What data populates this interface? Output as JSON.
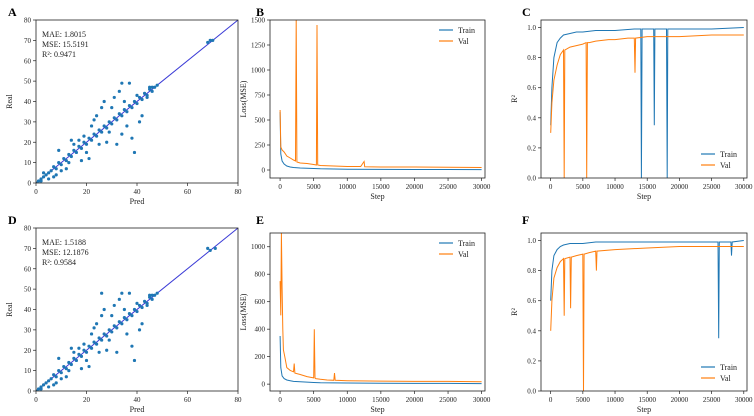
{
  "chart_data": [
    {
      "panel": "A",
      "type": "scatter",
      "xlabel": "Pred",
      "ylabel": "Real",
      "xlim": [
        0,
        80
      ],
      "ylim": [
        0,
        80
      ],
      "xticks": [
        0,
        20,
        40,
        60,
        80
      ],
      "yticks": [
        0,
        10,
        20,
        30,
        40,
        50,
        60,
        70,
        80
      ],
      "metrics": [
        "MAE: 1.8015",
        "MSE: 15.5191",
        "R²: 0.9471"
      ],
      "identity_line": true,
      "grid": false,
      "points": [
        [
          0,
          0
        ],
        [
          1,
          1
        ],
        [
          2,
          2
        ],
        [
          3,
          3
        ],
        [
          4,
          4
        ],
        [
          5,
          5
        ],
        [
          2,
          1
        ],
        [
          3,
          5
        ],
        [
          6,
          6
        ],
        [
          7,
          8
        ],
        [
          8,
          7
        ],
        [
          9,
          10
        ],
        [
          10,
          9
        ],
        [
          11,
          12
        ],
        [
          12,
          11
        ],
        [
          13,
          14
        ],
        [
          14,
          13
        ],
        [
          15,
          16
        ],
        [
          16,
          15
        ],
        [
          17,
          18
        ],
        [
          18,
          17
        ],
        [
          19,
          20
        ],
        [
          20,
          19
        ],
        [
          21,
          22
        ],
        [
          22,
          21
        ],
        [
          23,
          24
        ],
        [
          24,
          23
        ],
        [
          25,
          26
        ],
        [
          26,
          25
        ],
        [
          27,
          28
        ],
        [
          28,
          27
        ],
        [
          29,
          30
        ],
        [
          30,
          29
        ],
        [
          31,
          32
        ],
        [
          32,
          31
        ],
        [
          33,
          34
        ],
        [
          34,
          33
        ],
        [
          35,
          36
        ],
        [
          36,
          35
        ],
        [
          37,
          38
        ],
        [
          38,
          37
        ],
        [
          39,
          40
        ],
        [
          40,
          39
        ],
        [
          41,
          42
        ],
        [
          42,
          41
        ],
        [
          43,
          44
        ],
        [
          44,
          43
        ],
        [
          45,
          46
        ],
        [
          46,
          45
        ],
        [
          47,
          47
        ],
        [
          48,
          48
        ],
        [
          5,
          2
        ],
        [
          8,
          4
        ],
        [
          10,
          6
        ],
        [
          13,
          10
        ],
        [
          15,
          19
        ],
        [
          18,
          11
        ],
        [
          20,
          15
        ],
        [
          22,
          28
        ],
        [
          25,
          19
        ],
        [
          28,
          20
        ],
        [
          30,
          37
        ],
        [
          31,
          42
        ],
        [
          33,
          45
        ],
        [
          35,
          40
        ],
        [
          36,
          28
        ],
        [
          38,
          22
        ],
        [
          40,
          43
        ],
        [
          42,
          33
        ],
        [
          44,
          42
        ],
        [
          26,
          37
        ],
        [
          24,
          33
        ],
        [
          29,
          25
        ],
        [
          32,
          19
        ],
        [
          34,
          49
        ],
        [
          37,
          49
        ],
        [
          39,
          15
        ],
        [
          41,
          30
        ],
        [
          27,
          40
        ],
        [
          23,
          31
        ],
        [
          19,
          23
        ],
        [
          17,
          21
        ],
        [
          14,
          21
        ],
        [
          12,
          7
        ],
        [
          9,
          16
        ],
        [
          7,
          3
        ],
        [
          21,
          12
        ],
        [
          34,
          24
        ],
        [
          45,
          47
        ],
        [
          46,
          47
        ],
        [
          68,
          69
        ],
        [
          69,
          70
        ],
        [
          70,
          70
        ]
      ]
    },
    {
      "panel": "B",
      "type": "line",
      "xlabel": "Step",
      "ylabel": "Loss(MSE)",
      "xlim": [
        -1500,
        30500
      ],
      "ylim": [
        -80,
        1500
      ],
      "xticks": [
        0,
        5000,
        10000,
        15000,
        20000,
        25000,
        30000
      ],
      "yticks": [
        0,
        250,
        500,
        750,
        1000,
        1250,
        1500
      ],
      "legend": "top-right",
      "grid": false,
      "series": [
        {
          "name": "Train",
          "color": "#1f77b4",
          "x": [
            0,
            100,
            300,
            600,
            1000,
            1500,
            2000,
            3000,
            4000,
            5000,
            6000,
            8000,
            10000,
            15000,
            20000,
            25000,
            30000
          ],
          "y": [
            580,
            160,
            90,
            60,
            40,
            30,
            25,
            20,
            18,
            15,
            12,
            10,
            8,
            6,
            5,
            5,
            4
          ]
        },
        {
          "name": "Val",
          "color": "#ff7f0e",
          "x": [
            0,
            100,
            300,
            600,
            1000,
            1500,
            2000,
            2300,
            2400,
            2500,
            3000,
            4000,
            5000,
            5400,
            5500,
            5600,
            6000,
            8000,
            10000,
            12000,
            12500,
            12600,
            15000,
            20000,
            25000,
            30000
          ],
          "y": [
            600,
            230,
            200,
            180,
            140,
            120,
            100,
            90,
            1520,
            80,
            70,
            65,
            55,
            50,
            1450,
            50,
            45,
            40,
            35,
            35,
            85,
            32,
            30,
            30,
            28,
            25
          ]
        }
      ]
    },
    {
      "panel": "C",
      "type": "line",
      "xlabel": "Step",
      "ylabel": "R²",
      "xlim": [
        -1500,
        30500
      ],
      "ylim": [
        0,
        1.05
      ],
      "xticks": [
        0,
        5000,
        10000,
        15000,
        20000,
        25000,
        30000
      ],
      "yticks": [
        0.0,
        0.2,
        0.4,
        0.6,
        0.8,
        1.0
      ],
      "legend": "bottom-right",
      "grid": false,
      "series": [
        {
          "name": "Train",
          "color": "#1f77b4",
          "x": [
            0,
            200,
            500,
            1000,
            1500,
            2000,
            3000,
            4000,
            5000,
            7000,
            10000,
            13000,
            14000,
            14100,
            14200,
            15000,
            16000,
            16100,
            16200,
            17000,
            18000,
            18100,
            18200,
            20000,
            25000,
            30000
          ],
          "y": [
            0.35,
            0.6,
            0.8,
            0.9,
            0.93,
            0.95,
            0.96,
            0.97,
            0.97,
            0.98,
            0.98,
            0.99,
            0.99,
            0.0,
            0.99,
            0.99,
            0.99,
            0.35,
            0.99,
            0.99,
            0.99,
            0.0,
            0.99,
            0.99,
            0.99,
            1.0
          ]
        },
        {
          "name": "Val",
          "color": "#ff7f0e",
          "x": [
            0,
            200,
            500,
            1000,
            1500,
            2000,
            2100,
            2200,
            3000,
            4000,
            5000,
            5500,
            5600,
            5700,
            6000,
            7000,
            9000,
            10000,
            12000,
            13000,
            13100,
            13200,
            15000,
            20000,
            25000,
            30000
          ],
          "y": [
            0.3,
            0.5,
            0.65,
            0.75,
            0.82,
            0.85,
            0.0,
            0.85,
            0.87,
            0.88,
            0.89,
            0.9,
            0.0,
            0.9,
            0.9,
            0.91,
            0.92,
            0.92,
            0.93,
            0.93,
            0.7,
            0.93,
            0.94,
            0.94,
            0.95,
            0.95
          ]
        }
      ]
    },
    {
      "panel": "D",
      "type": "scatter",
      "xlabel": "Pred",
      "ylabel": "Real",
      "xlim": [
        0,
        80
      ],
      "ylim": [
        0,
        80
      ],
      "xticks": [
        0,
        20,
        40,
        60,
        80
      ],
      "yticks": [
        0,
        10,
        20,
        30,
        40,
        50,
        60,
        70,
        80
      ],
      "metrics": [
        "MAE: 1.5188",
        "MSE: 12.1876",
        "R²: 0.9584"
      ],
      "identity_line": true,
      "grid": false,
      "points": [
        [
          0,
          0
        ],
        [
          1,
          1
        ],
        [
          2,
          2
        ],
        [
          3,
          3
        ],
        [
          4,
          4
        ],
        [
          5,
          5
        ],
        [
          2,
          1
        ],
        [
          6,
          6
        ],
        [
          7,
          8
        ],
        [
          8,
          7
        ],
        [
          9,
          10
        ],
        [
          10,
          9
        ],
        [
          11,
          12
        ],
        [
          12,
          11
        ],
        [
          13,
          14
        ],
        [
          14,
          13
        ],
        [
          15,
          16
        ],
        [
          16,
          15
        ],
        [
          17,
          18
        ],
        [
          18,
          17
        ],
        [
          19,
          20
        ],
        [
          20,
          19
        ],
        [
          21,
          22
        ],
        [
          22,
          21
        ],
        [
          23,
          24
        ],
        [
          24,
          23
        ],
        [
          25,
          26
        ],
        [
          26,
          25
        ],
        [
          27,
          28
        ],
        [
          28,
          27
        ],
        [
          29,
          30
        ],
        [
          30,
          29
        ],
        [
          31,
          32
        ],
        [
          32,
          31
        ],
        [
          33,
          34
        ],
        [
          34,
          33
        ],
        [
          35,
          36
        ],
        [
          36,
          35
        ],
        [
          37,
          38
        ],
        [
          38,
          37
        ],
        [
          39,
          40
        ],
        [
          40,
          39
        ],
        [
          41,
          42
        ],
        [
          42,
          41
        ],
        [
          43,
          44
        ],
        [
          44,
          43
        ],
        [
          45,
          46
        ],
        [
          46,
          45
        ],
        [
          47,
          47
        ],
        [
          48,
          48
        ],
        [
          5,
          2
        ],
        [
          8,
          4
        ],
        [
          10,
          6
        ],
        [
          13,
          10
        ],
        [
          15,
          19
        ],
        [
          18,
          11
        ],
        [
          20,
          15
        ],
        [
          22,
          28
        ],
        [
          25,
          19
        ],
        [
          28,
          20
        ],
        [
          30,
          37
        ],
        [
          31,
          42
        ],
        [
          33,
          45
        ],
        [
          35,
          40
        ],
        [
          36,
          28
        ],
        [
          38,
          22
        ],
        [
          40,
          43
        ],
        [
          42,
          33
        ],
        [
          44,
          42
        ],
        [
          26,
          37
        ],
        [
          24,
          33
        ],
        [
          29,
          25
        ],
        [
          32,
          19
        ],
        [
          34,
          48
        ],
        [
          37,
          48
        ],
        [
          39,
          15
        ],
        [
          41,
          30
        ],
        [
          27,
          40
        ],
        [
          23,
          31
        ],
        [
          19,
          23
        ],
        [
          17,
          21
        ],
        [
          14,
          21
        ],
        [
          12,
          7
        ],
        [
          9,
          16
        ],
        [
          7,
          3
        ],
        [
          21,
          12
        ],
        [
          26,
          48
        ],
        [
          45,
          47
        ],
        [
          46,
          47
        ],
        [
          68,
          70
        ],
        [
          69,
          69
        ],
        [
          71,
          70
        ]
      ]
    },
    {
      "panel": "E",
      "type": "line",
      "xlabel": "Step",
      "ylabel": "Loss(MSE)",
      "xlim": [
        -1500,
        30500
      ],
      "ylim": [
        -50,
        1100
      ],
      "xticks": [
        0,
        5000,
        10000,
        15000,
        20000,
        25000,
        30000
      ],
      "yticks": [
        0,
        200,
        400,
        600,
        800,
        1000
      ],
      "legend": "top-right",
      "grid": false,
      "series": [
        {
          "name": "Train",
          "color": "#1f77b4",
          "x": [
            0,
            100,
            300,
            600,
            1000,
            1500,
            2000,
            3000,
            4000,
            5000,
            6000,
            8000,
            10000,
            15000,
            20000,
            25000,
            30000
          ],
          "y": [
            350,
            120,
            60,
            40,
            30,
            25,
            20,
            18,
            15,
            12,
            10,
            9,
            8,
            6,
            5,
            5,
            4
          ]
        },
        {
          "name": "Val",
          "color": "#ff7f0e",
          "x": [
            0,
            100,
            200,
            300,
            400,
            500,
            700,
            1000,
            1500,
            2000,
            2100,
            2200,
            3000,
            4000,
            5000,
            5100,
            5200,
            5300,
            6000,
            7000,
            8000,
            8100,
            8200,
            10000,
            15000,
            20000,
            25000,
            30000
          ],
          "y": [
            750,
            500,
            1100,
            700,
            400,
            250,
            200,
            120,
            100,
            90,
            150,
            80,
            70,
            55,
            45,
            400,
            45,
            40,
            35,
            30,
            28,
            80,
            28,
            25,
            22,
            20,
            20,
            18
          ]
        }
      ]
    },
    {
      "panel": "F",
      "type": "line",
      "xlabel": "Step",
      "ylabel": "R²",
      "xlim": [
        -1500,
        30500
      ],
      "ylim": [
        0,
        1.05
      ],
      "xticks": [
        0,
        5000,
        10000,
        15000,
        20000,
        25000,
        30000
      ],
      "yticks": [
        0.0,
        0.2,
        0.4,
        0.6,
        0.8,
        1.0
      ],
      "legend": "bottom-right",
      "grid": false,
      "series": [
        {
          "name": "Train",
          "color": "#1f77b4",
          "x": [
            0,
            200,
            500,
            1000,
            1500,
            2000,
            3000,
            4000,
            5000,
            7000,
            10000,
            15000,
            20000,
            25000,
            26000,
            26100,
            26200,
            27000,
            28000,
            28100,
            28200,
            30000
          ],
          "y": [
            0.6,
            0.8,
            0.9,
            0.94,
            0.96,
            0.97,
            0.98,
            0.98,
            0.98,
            0.99,
            0.99,
            0.99,
            0.99,
            0.99,
            0.99,
            0.35,
            0.99,
            0.99,
            0.99,
            0.9,
            0.99,
            1.0
          ]
        },
        {
          "name": "Val",
          "color": "#ff7f0e",
          "x": [
            0,
            200,
            500,
            1000,
            1500,
            2000,
            2100,
            2200,
            3000,
            3100,
            3200,
            4000,
            5000,
            5100,
            5200,
            6000,
            7000,
            7100,
            7200,
            10000,
            15000,
            20000,
            25000,
            30000
          ],
          "y": [
            0.4,
            0.6,
            0.75,
            0.82,
            0.86,
            0.88,
            0.5,
            0.88,
            0.89,
            0.55,
            0.89,
            0.9,
            0.91,
            0.0,
            0.91,
            0.92,
            0.93,
            0.8,
            0.93,
            0.94,
            0.95,
            0.96,
            0.96,
            0.96
          ]
        }
      ]
    }
  ],
  "panel_letters": [
    "A",
    "B",
    "C",
    "D",
    "E",
    "F"
  ]
}
